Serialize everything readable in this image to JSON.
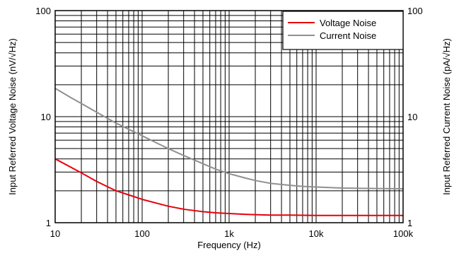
{
  "chart_data": {
    "type": "line",
    "xlabel": "Frequency (Hz)",
    "ylabel_left": "Input Referred Voltage Noise (nV/√Hz)",
    "ylabel_right": "Input Referred Current Noise (pA/√Hz)",
    "x_scale": "log",
    "y_scale": "log",
    "xlim": [
      10,
      100000
    ],
    "ylim": [
      1,
      100
    ],
    "x_ticks": [
      {
        "value": 10,
        "label": "10"
      },
      {
        "value": 100,
        "label": "100"
      },
      {
        "value": 1000,
        "label": "1k"
      },
      {
        "value": 10000,
        "label": "10k"
      },
      {
        "value": 100000,
        "label": "100k"
      }
    ],
    "y_ticks_left": [
      {
        "value": 1,
        "label": "1"
      },
      {
        "value": 10,
        "label": "10"
      },
      {
        "value": 100,
        "label": "100"
      }
    ],
    "y_ticks_right": [
      {
        "value": 1,
        "label": "1"
      },
      {
        "value": 10,
        "label": "10"
      },
      {
        "value": 100,
        "label": "100"
      }
    ],
    "grid": true,
    "legend_position": "top-right",
    "series": [
      {
        "name": "Voltage Noise",
        "color": "#e8000b",
        "x": [
          10,
          15,
          20,
          30,
          50,
          70,
          100,
          150,
          200,
          300,
          500,
          700,
          1000,
          1500,
          2000,
          3000,
          5000,
          10000,
          20000,
          50000,
          100000
        ],
        "y": [
          4.0,
          3.35,
          2.95,
          2.45,
          2.0,
          1.83,
          1.66,
          1.52,
          1.43,
          1.34,
          1.27,
          1.24,
          1.22,
          1.2,
          1.19,
          1.18,
          1.18,
          1.17,
          1.17,
          1.17,
          1.17
        ]
      },
      {
        "name": "Current Noise",
        "color": "#909090",
        "x": [
          10,
          15,
          20,
          30,
          50,
          70,
          100,
          150,
          200,
          300,
          500,
          700,
          1000,
          1500,
          2000,
          3000,
          5000,
          7000,
          10000,
          20000,
          50000,
          100000
        ],
        "y": [
          18.5,
          15.2,
          13.3,
          11.0,
          8.7,
          7.6,
          6.6,
          5.6,
          5.0,
          4.3,
          3.6,
          3.2,
          2.9,
          2.65,
          2.5,
          2.35,
          2.25,
          2.2,
          2.17,
          2.12,
          2.1,
          2.09
        ]
      }
    ]
  }
}
